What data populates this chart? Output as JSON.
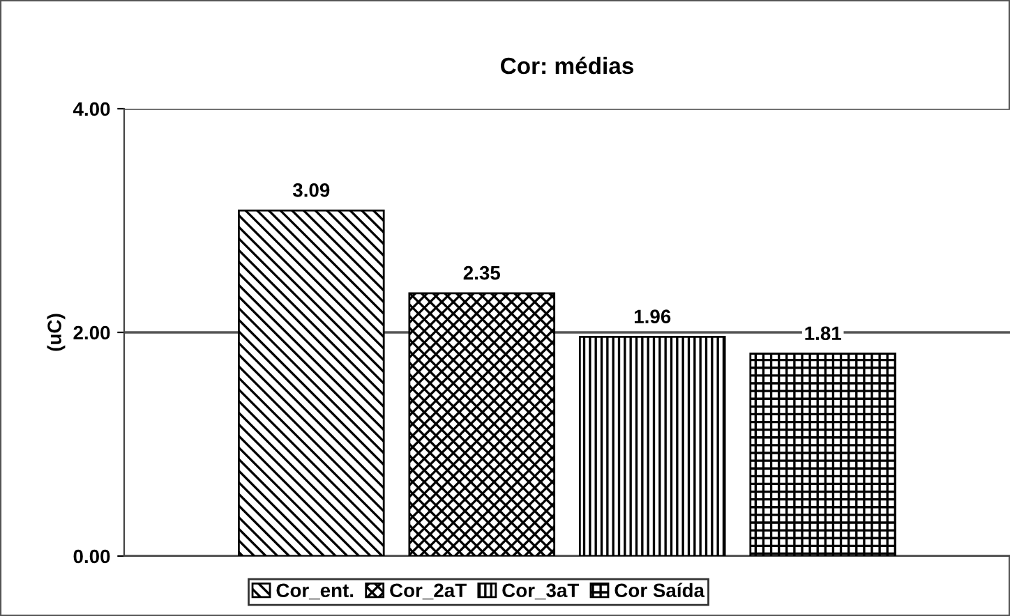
{
  "chart_data": {
    "type": "bar",
    "title": "Cor: médias",
    "ylabel": "(uC)",
    "categories": [
      null
    ],
    "series": [
      {
        "name": "Cor_ent.",
        "color": "#000000",
        "values": [
          3.09
        ]
      },
      {
        "name": "Cor_2aT",
        "color": "#000000",
        "values": [
          2.35
        ]
      },
      {
        "name": "Cor_3aT",
        "color": "#000000",
        "values": [
          1.96
        ]
      },
      {
        "name": "Cor Saída",
        "color": "#000000",
        "values": [
          1.81
        ]
      }
    ],
    "ylim": [
      0,
      4
    ],
    "yticks": [
      {
        "value": 0,
        "label": "0.00"
      },
      {
        "value": 2,
        "label": "2.00"
      },
      {
        "value": 4,
        "label": "4.00"
      }
    ],
    "grid": "y",
    "legend": "bottom",
    "data_labels": true
  }
}
